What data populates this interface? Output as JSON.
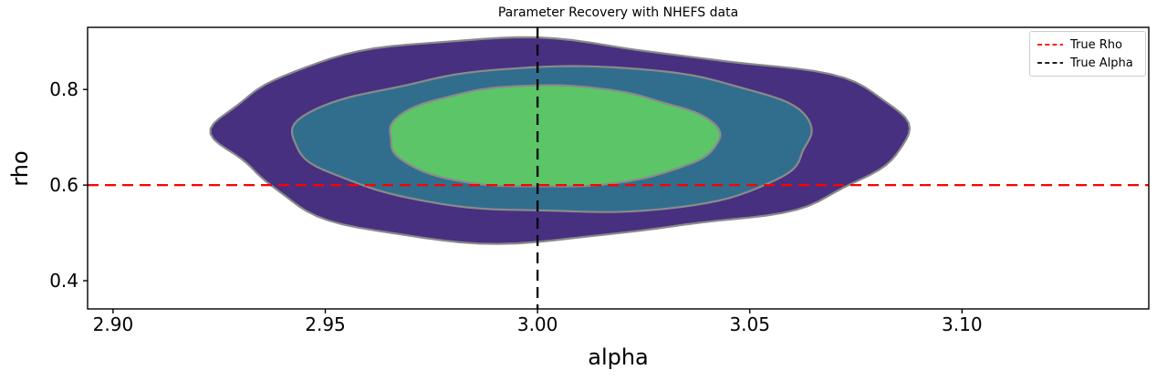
{
  "chart": {
    "title": "Parameter Recovery with NHEFS data",
    "xlabel": "alpha",
    "ylabel": "rho"
  },
  "legend": {
    "position": "upper right",
    "items": [
      {
        "label": "True Rho",
        "color": "#ff0000",
        "style": "dashed"
      },
      {
        "label": "True Alpha",
        "color": "#000000",
        "style": "dashed"
      }
    ]
  },
  "chart_data": {
    "type": "contour",
    "subtype": "2d-kde-density",
    "title": "Parameter Recovery with NHEFS data",
    "xlabel": "alpha",
    "ylabel": "rho",
    "xlim": [
      2.894,
      3.144
    ],
    "ylim": [
      0.341,
      0.93
    ],
    "xticks": [
      2.9,
      2.95,
      3.0,
      3.05,
      3.1
    ],
    "xtick_labels": [
      "2.90",
      "2.95",
      "3.00",
      "3.05",
      "3.10"
    ],
    "yticks": [
      0.4,
      0.6,
      0.8
    ],
    "ytick_labels": [
      "0.4",
      "0.6",
      "0.8"
    ],
    "grid": false,
    "background": "#ffffff",
    "reference_lines": [
      {
        "name": "True Rho",
        "axis": "y",
        "value": 0.6,
        "color": "#ff0000",
        "dashed": true
      },
      {
        "name": "True Alpha",
        "axis": "x",
        "value": 3.0,
        "color": "#000000",
        "dashed": true
      }
    ],
    "contours": {
      "center": {
        "alpha": 3.004,
        "rho": 0.697
      },
      "stroke": "#8a8a8a",
      "levels": [
        {
          "name": "outer",
          "fill": "#473080",
          "alpha_range": [
            2.919,
            3.089
          ],
          "rho_range": [
            0.476,
            0.916
          ]
        },
        {
          "name": "middle",
          "fill": "#316e8e",
          "alpha_range": [
            2.942,
            3.068
          ],
          "rho_range": [
            0.538,
            0.852
          ]
        },
        {
          "name": "inner",
          "fill": "#5bc567",
          "alpha_range": [
            2.963,
            3.043
          ],
          "rho_range": [
            0.592,
            0.81
          ]
        }
      ]
    }
  }
}
